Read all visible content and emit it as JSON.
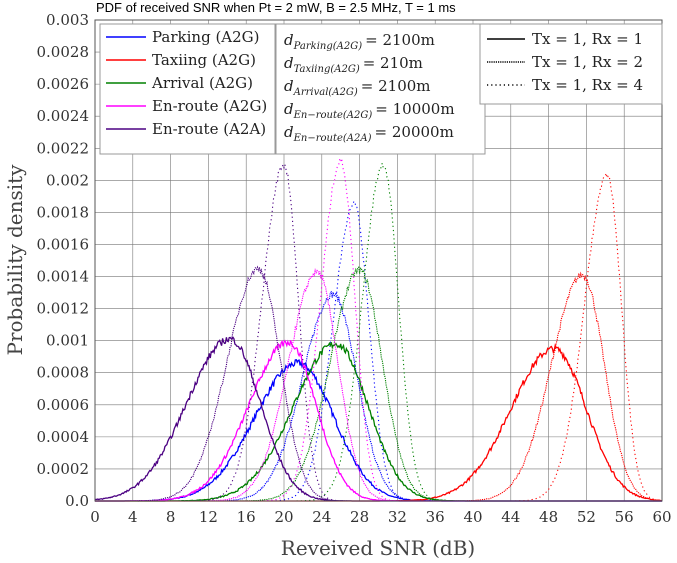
{
  "chart_data": {
    "type": "line",
    "title": "PDF of received SNR when Pt = 2 mW, B = 2.5 MHz, T = 1 ms",
    "xlabel": "Reveived SNR (dB)",
    "ylabel": "Probability density",
    "xlim": [
      0,
      60
    ],
    "ylim": [
      0,
      0.003
    ],
    "x_ticks": [
      "0",
      "4",
      "8",
      "12",
      "16",
      "20",
      "24",
      "28",
      "32",
      "36",
      "40",
      "44",
      "48",
      "52",
      "56",
      "60"
    ],
    "y_ticks": [
      "0.0",
      "0.0002",
      "0.0004",
      "0.0006",
      "0.0008",
      "0.001",
      "0.0012",
      "0.0014",
      "0.0016",
      "0.0018",
      "0.002",
      "0.0022",
      "0.0024",
      "0.0026",
      "0.0028",
      "0.003"
    ],
    "grid": true,
    "scenarios": [
      {
        "name": "Parking (A2G)",
        "color": "#0000ff",
        "distance_label": "Parking(A2G)",
        "distance_value": "= 2100m"
      },
      {
        "name": "Taxiing (A2G)",
        "color": "#ff0000",
        "distance_label": "Taxiing(A2G)",
        "distance_value": "= 210m"
      },
      {
        "name": "Arrival (A2G)",
        "color": "#008000",
        "distance_label": "Arrival(A2G)",
        "distance_value": "= 2100m"
      },
      {
        "name": "En-route (A2G)",
        "color": "#ff00ff",
        "distance_label": "En−route(A2G)",
        "distance_value": "= 10000m"
      },
      {
        "name": "En-route (A2A)",
        "color": "#4b0082",
        "distance_label": "En−route(A2A)",
        "distance_value": "= 20000m"
      }
    ],
    "antenna_configs": [
      {
        "name": "Tx = 1, Rx = 1",
        "style": "solid"
      },
      {
        "name": "Tx = 1, Rx = 2",
        "style": "dense-dot"
      },
      {
        "name": "Tx = 1, Rx = 4",
        "style": "dotted"
      }
    ],
    "series": [
      {
        "scenario": 0,
        "config": 0,
        "peak_x": 21.5,
        "peak_y": 0.00086,
        "sigma_left": 4.6,
        "sigma_right": 3.8
      },
      {
        "scenario": 0,
        "config": 1,
        "peak_x": 25.2,
        "peak_y": 0.00129,
        "sigma_left": 3.2,
        "sigma_right": 2.5
      },
      {
        "scenario": 0,
        "config": 2,
        "peak_x": 27.4,
        "peak_y": 0.00185,
        "sigma_left": 2.2,
        "sigma_right": 1.6
      },
      {
        "scenario": 1,
        "config": 0,
        "peak_x": 48.6,
        "peak_y": 0.00095,
        "sigma_left": 4.6,
        "sigma_right": 3.4
      },
      {
        "scenario": 1,
        "config": 1,
        "peak_x": 51.6,
        "peak_y": 0.00141,
        "sigma_left": 3.3,
        "sigma_right": 2.3
      },
      {
        "scenario": 1,
        "config": 2,
        "peak_x": 54.2,
        "peak_y": 0.00203,
        "sigma_left": 2.4,
        "sigma_right": 1.5
      },
      {
        "scenario": 2,
        "config": 0,
        "peak_x": 25.5,
        "peak_y": 0.00098,
        "sigma_left": 4.5,
        "sigma_right": 3.4
      },
      {
        "scenario": 2,
        "config": 1,
        "peak_x": 28.0,
        "peak_y": 0.00144,
        "sigma_left": 3.1,
        "sigma_right": 2.4
      },
      {
        "scenario": 2,
        "config": 2,
        "peak_x": 30.5,
        "peak_y": 0.0021,
        "sigma_left": 2.2,
        "sigma_right": 1.6
      },
      {
        "scenario": 3,
        "config": 0,
        "peak_x": 20.5,
        "peak_y": 0.00099,
        "sigma_left": 4.2,
        "sigma_right": 2.9
      },
      {
        "scenario": 3,
        "config": 1,
        "peak_x": 23.5,
        "peak_y": 0.00143,
        "sigma_left": 3.0,
        "sigma_right": 2.2
      },
      {
        "scenario": 3,
        "config": 2,
        "peak_x": 26.0,
        "peak_y": 0.00212,
        "sigma_left": 2.1,
        "sigma_right": 1.5
      },
      {
        "scenario": 4,
        "config": 0,
        "peak_x": 14.3,
        "peak_y": 0.00101,
        "sigma_left": 4.6,
        "sigma_right": 3.2
      },
      {
        "scenario": 4,
        "config": 1,
        "peak_x": 17.3,
        "peak_y": 0.00145,
        "sigma_left": 3.3,
        "sigma_right": 2.3
      },
      {
        "scenario": 4,
        "config": 2,
        "peak_x": 20.0,
        "peak_y": 0.0021,
        "sigma_left": 2.3,
        "sigma_right": 1.5
      }
    ]
  }
}
